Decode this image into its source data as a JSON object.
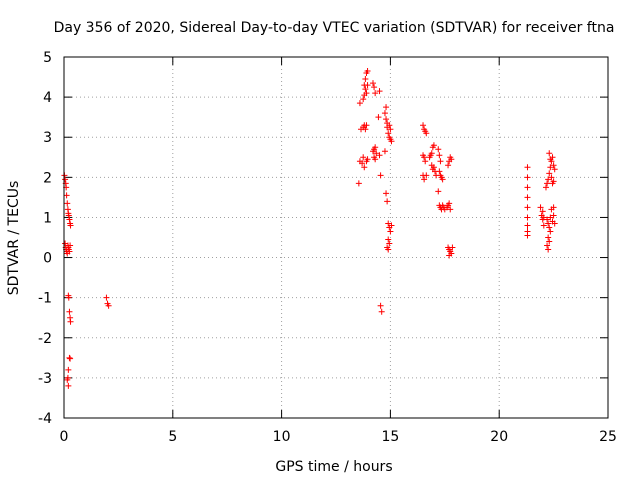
{
  "chart_data": {
    "type": "scatter",
    "title": "Day 356 of 2020, Sidereal Day-to-day VTEC variation (SDTVAR) for receiver ftna",
    "xlabel": "GPS time / hours",
    "ylabel": "SDTVAR / TECUs",
    "xlim": [
      0,
      25
    ],
    "ylim": [
      -4,
      5
    ],
    "xticks": [
      0,
      5,
      10,
      15,
      20,
      25
    ],
    "yticks": [
      -4,
      -3,
      -2,
      -1,
      0,
      1,
      2,
      3,
      4,
      5
    ],
    "grid": true,
    "marker": "+",
    "color": "#ff0000",
    "series": [
      {
        "name": "SDTVAR",
        "points": [
          [
            0.02,
            2.05
          ],
          [
            0.05,
            1.95
          ],
          [
            0.08,
            1.85
          ],
          [
            0.1,
            1.75
          ],
          [
            0.12,
            1.55
          ],
          [
            0.15,
            1.35
          ],
          [
            0.18,
            1.2
          ],
          [
            0.2,
            1.1
          ],
          [
            0.22,
            1.05
          ],
          [
            0.25,
            0.95
          ],
          [
            0.28,
            0.85
          ],
          [
            0.3,
            0.8
          ],
          [
            0.05,
            0.35
          ],
          [
            0.08,
            0.25
          ],
          [
            0.1,
            0.2
          ],
          [
            0.12,
            0.15
          ],
          [
            0.15,
            0.1
          ],
          [
            0.18,
            0.3
          ],
          [
            0.2,
            0.25
          ],
          [
            0.22,
            0.2
          ],
          [
            0.25,
            0.15
          ],
          [
            0.28,
            0.3
          ],
          [
            0.2,
            -0.95
          ],
          [
            0.22,
            -1.0
          ],
          [
            0.25,
            -1.35
          ],
          [
            0.28,
            -1.5
          ],
          [
            0.3,
            -1.6
          ],
          [
            0.25,
            -2.5
          ],
          [
            0.28,
            -2.52
          ],
          [
            0.2,
            -2.8
          ],
          [
            0.18,
            -3.0
          ],
          [
            0.15,
            -3.05
          ],
          [
            0.2,
            -3.2
          ],
          [
            1.95,
            -1.0
          ],
          [
            2.0,
            -1.15
          ],
          [
            2.05,
            -1.2
          ],
          [
            13.55,
            1.85
          ],
          [
            13.6,
            2.4
          ],
          [
            13.65,
            3.2
          ],
          [
            13.6,
            3.85
          ],
          [
            13.7,
            2.35
          ],
          [
            13.75,
            2.5
          ],
          [
            13.8,
            2.25
          ],
          [
            13.75,
            3.25
          ],
          [
            13.8,
            3.3
          ],
          [
            13.85,
            3.2
          ],
          [
            13.9,
            3.3
          ],
          [
            13.75,
            3.95
          ],
          [
            13.8,
            4.05
          ],
          [
            13.85,
            4.2
          ],
          [
            13.8,
            4.3
          ],
          [
            13.9,
            4.1
          ],
          [
            13.95,
            4.3
          ],
          [
            13.9,
            4.6
          ],
          [
            13.95,
            4.65
          ],
          [
            13.85,
            4.45
          ],
          [
            13.9,
            2.4
          ],
          [
            13.95,
            2.45
          ],
          [
            14.2,
            4.35
          ],
          [
            14.25,
            4.25
          ],
          [
            14.3,
            4.1
          ],
          [
            14.2,
            2.65
          ],
          [
            14.25,
            2.7
          ],
          [
            14.3,
            2.75
          ],
          [
            14.35,
            2.6
          ],
          [
            14.25,
            2.5
          ],
          [
            14.3,
            2.45
          ],
          [
            14.5,
            4.15
          ],
          [
            14.45,
            3.5
          ],
          [
            14.5,
            2.55
          ],
          [
            14.55,
            2.05
          ],
          [
            14.55,
            -1.2
          ],
          [
            14.6,
            -1.35
          ],
          [
            14.75,
            3.6
          ],
          [
            14.8,
            3.75
          ],
          [
            14.8,
            3.45
          ],
          [
            14.85,
            3.35
          ],
          [
            14.85,
            3.25
          ],
          [
            14.9,
            3.1
          ],
          [
            14.95,
            3.0
          ],
          [
            15.0,
            2.95
          ],
          [
            15.05,
            2.9
          ],
          [
            14.95,
            3.3
          ],
          [
            15.0,
            3.2
          ],
          [
            14.75,
            2.65
          ],
          [
            14.8,
            1.6
          ],
          [
            14.85,
            1.4
          ],
          [
            14.9,
            0.85
          ],
          [
            14.95,
            0.75
          ],
          [
            15.0,
            0.65
          ],
          [
            15.05,
            0.8
          ],
          [
            14.9,
            0.45
          ],
          [
            14.95,
            0.35
          ],
          [
            14.85,
            0.25
          ],
          [
            14.9,
            0.2
          ],
          [
            16.5,
            3.3
          ],
          [
            16.55,
            3.2
          ],
          [
            16.6,
            3.15
          ],
          [
            16.65,
            3.1
          ],
          [
            16.5,
            2.55
          ],
          [
            16.55,
            2.5
          ],
          [
            16.6,
            2.4
          ],
          [
            16.5,
            2.05
          ],
          [
            16.55,
            1.95
          ],
          [
            16.65,
            2.05
          ],
          [
            16.8,
            2.5
          ],
          [
            16.85,
            2.55
          ],
          [
            16.9,
            2.6
          ],
          [
            16.95,
            2.75
          ],
          [
            17.0,
            2.8
          ],
          [
            16.9,
            2.3
          ],
          [
            16.95,
            2.2
          ],
          [
            17.0,
            2.25
          ],
          [
            17.05,
            2.15
          ],
          [
            17.1,
            2.05
          ],
          [
            17.2,
            2.7
          ],
          [
            17.25,
            2.55
          ],
          [
            17.3,
            2.4
          ],
          [
            17.25,
            2.15
          ],
          [
            17.3,
            2.05
          ],
          [
            17.35,
            2.0
          ],
          [
            17.4,
            1.95
          ],
          [
            17.2,
            1.65
          ],
          [
            17.25,
            1.3
          ],
          [
            17.3,
            1.25
          ],
          [
            17.35,
            1.2
          ],
          [
            17.4,
            1.3
          ],
          [
            17.45,
            1.25
          ],
          [
            17.5,
            1.2
          ],
          [
            17.6,
            1.25
          ],
          [
            17.65,
            1.3
          ],
          [
            17.7,
            1.35
          ],
          [
            17.75,
            1.2
          ],
          [
            17.65,
            2.3
          ],
          [
            17.7,
            2.4
          ],
          [
            17.75,
            2.5
          ],
          [
            17.8,
            2.45
          ],
          [
            17.65,
            0.25
          ],
          [
            17.7,
            0.2
          ],
          [
            17.75,
            0.15
          ],
          [
            17.8,
            0.1
          ],
          [
            17.85,
            0.25
          ],
          [
            17.7,
            0.05
          ],
          [
            21.3,
            2.25
          ],
          [
            21.3,
            2.0
          ],
          [
            21.3,
            1.75
          ],
          [
            21.3,
            1.5
          ],
          [
            21.3,
            1.25
          ],
          [
            21.3,
            1.0
          ],
          [
            21.3,
            0.8
          ],
          [
            21.3,
            0.65
          ],
          [
            21.3,
            0.55
          ],
          [
            21.9,
            1.25
          ],
          [
            21.95,
            1.05
          ],
          [
            22.0,
            0.95
          ],
          [
            22.05,
            0.8
          ],
          [
            22.0,
            1.15
          ],
          [
            22.05,
            1.0
          ],
          [
            22.15,
            1.75
          ],
          [
            22.2,
            1.85
          ],
          [
            22.25,
            1.95
          ],
          [
            22.3,
            2.1
          ],
          [
            22.35,
            2.25
          ],
          [
            22.4,
            2.4
          ],
          [
            22.45,
            2.5
          ],
          [
            22.3,
            2.6
          ],
          [
            22.35,
            2.45
          ],
          [
            22.4,
            2.0
          ],
          [
            22.45,
            1.85
          ],
          [
            22.5,
            1.9
          ],
          [
            22.5,
            2.3
          ],
          [
            22.55,
            2.2
          ],
          [
            22.2,
            0.95
          ],
          [
            22.25,
            0.85
          ],
          [
            22.3,
            0.75
          ],
          [
            22.35,
            0.65
          ],
          [
            22.25,
            0.5
          ],
          [
            22.3,
            0.4
          ],
          [
            22.2,
            0.3
          ],
          [
            22.25,
            0.2
          ],
          [
            22.35,
            1.0
          ],
          [
            22.4,
            1.2
          ],
          [
            22.45,
            0.9
          ],
          [
            22.5,
            1.05
          ],
          [
            22.55,
            0.85
          ],
          [
            22.5,
            1.25
          ]
        ]
      }
    ]
  }
}
